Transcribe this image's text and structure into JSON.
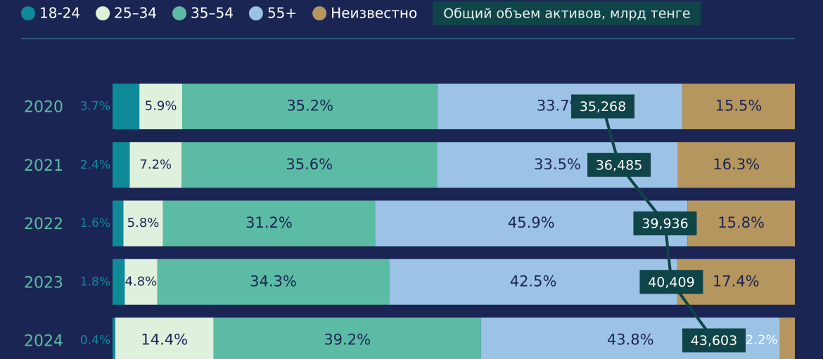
{
  "chart_data": {
    "type": "bar",
    "orientation": "horizontal",
    "stacked": true,
    "categories": [
      "2020",
      "2021",
      "2022",
      "2023",
      "2024"
    ],
    "series": [
      {
        "name": "18-24",
        "color": "#0e8a99",
        "values": [
          3.7,
          2.4,
          1.6,
          1.8,
          0.4
        ],
        "value_labels": [
          "3.7%",
          "2.4%",
          "1.6%",
          "1.8%",
          "0.4%"
        ]
      },
      {
        "name": "25–34",
        "color": "#dff0dc",
        "values": [
          5.9,
          7.2,
          5.8,
          4.8,
          14.4
        ],
        "value_labels": [
          "5.9%",
          "7.2%",
          "5.8%",
          "4.8%",
          "14.4%"
        ]
      },
      {
        "name": "35–54",
        "color": "#5bbba4",
        "values": [
          35.2,
          35.6,
          31.2,
          34.3,
          39.2
        ],
        "value_labels": [
          "35.2%",
          "35.6%",
          "31.2%",
          "34.3%",
          "39.2%"
        ]
      },
      {
        "name": "55+",
        "color": "#9cc2e5",
        "values": [
          33.7,
          33.5,
          45.9,
          42.5,
          43.8
        ],
        "value_labels": [
          "33.7%",
          "33.5%",
          "45.9%",
          "42.5%",
          "43.8%"
        ]
      },
      {
        "name": "Неизвестно",
        "color": "#b5965e",
        "values": [
          15.5,
          16.3,
          15.8,
          17.4,
          2.2
        ],
        "value_labels": [
          "15.5%",
          "16.3%",
          "15.8%",
          "17.4%",
          "2.2%"
        ]
      }
    ],
    "line": {
      "name": "Общий объем активов, млрд тенге",
      "color": "#0f4448",
      "values": [
        35268,
        36485,
        39936,
        40409,
        43603
      ],
      "value_labels": [
        "35,268",
        "36,485",
        "39,936",
        "40,409",
        "43,603"
      ]
    }
  }
}
